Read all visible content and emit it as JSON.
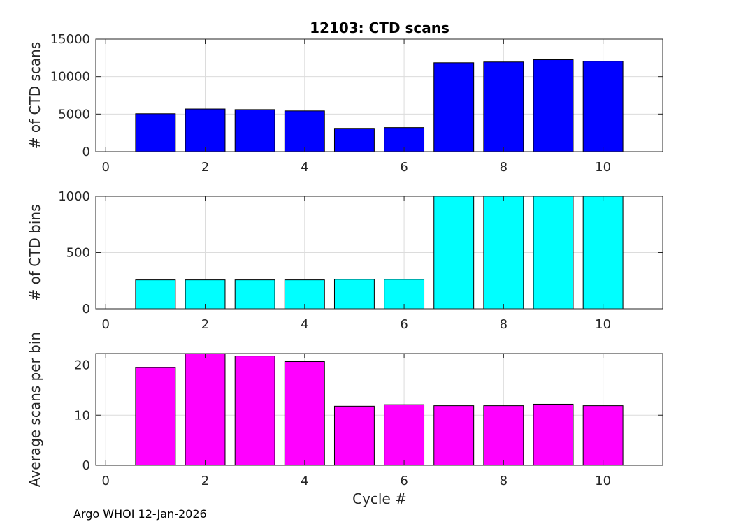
{
  "figure": {
    "title": "12103: CTD scans",
    "xlabel": "Cycle #",
    "footer": "Argo WHOI 12-Jan-2026"
  },
  "chart_data": [
    {
      "type": "bar",
      "x": [
        1,
        2,
        3,
        4,
        5,
        6,
        7,
        8,
        9,
        10
      ],
      "values": [
        5050,
        5680,
        5600,
        5420,
        3100,
        3200,
        11850,
        11950,
        12250,
        12050
      ],
      "ylabel": "# of CTD scans",
      "xlim": [
        -0.2,
        11.2
      ],
      "ylim": [
        0,
        15000
      ],
      "xticks": [
        0,
        2,
        4,
        6,
        8,
        10
      ],
      "yticks": [
        0,
        5000,
        10000,
        15000
      ],
      "color": "#0000ff",
      "grid": true
    },
    {
      "type": "bar",
      "x": [
        1,
        2,
        3,
        4,
        5,
        6,
        7,
        8,
        9,
        10
      ],
      "values": [
        257,
        257,
        257,
        257,
        262,
        262,
        1000,
        1000,
        1000,
        1000
      ],
      "ylabel": "# of CTD bins",
      "xlim": [
        -0.2,
        11.2
      ],
      "ylim": [
        0,
        1000
      ],
      "xticks": [
        0,
        2,
        4,
        6,
        8,
        10
      ],
      "yticks": [
        0,
        500,
        1000
      ],
      "color": "#00ffff",
      "grid": true
    },
    {
      "type": "bar",
      "x": [
        1,
        2,
        3,
        4,
        5,
        6,
        7,
        8,
        9,
        10
      ],
      "values": [
        19.5,
        22.3,
        21.8,
        20.7,
        11.8,
        12.1,
        11.9,
        11.9,
        12.2,
        11.9
      ],
      "ylabel": "Average scans per bin",
      "xlim": [
        -0.2,
        11.2
      ],
      "ylim": [
        0,
        22.3
      ],
      "xticks": [
        0,
        2,
        4,
        6,
        8,
        10
      ],
      "yticks": [
        0,
        10,
        20
      ],
      "color": "#ff00ff",
      "grid": true
    }
  ]
}
